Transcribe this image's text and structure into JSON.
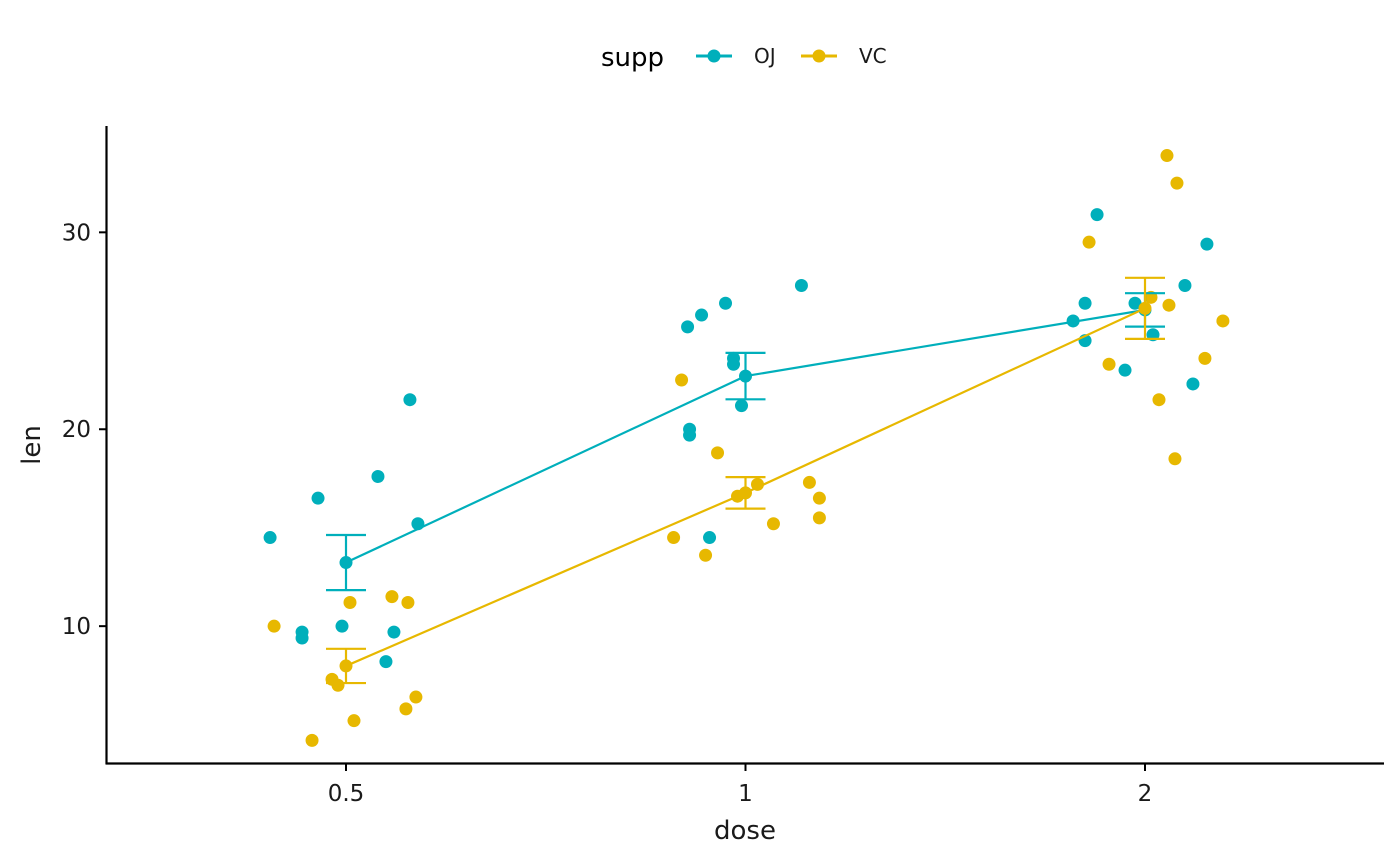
{
  "chart_data": {
    "type": "scatter",
    "title": "",
    "xlabel": "dose",
    "ylabel": "len",
    "x_categories": [
      "0.5",
      "1",
      "2"
    ],
    "y_ticks": [
      10,
      20,
      30
    ],
    "y_tick_labels": [
      "10",
      "20",
      "30"
    ],
    "ylim": [
      3.0,
      35.4
    ],
    "grid": false,
    "legend": {
      "title": "supp",
      "position": "top",
      "entries": [
        "OJ",
        "VC"
      ]
    },
    "colors": {
      "OJ": "#00AFBB",
      "VC": "#E7B800"
    },
    "series": [
      {
        "name": "OJ",
        "points": [
          {
            "dose": "0.5",
            "jitter": -0.19,
            "len": 14.5
          },
          {
            "dose": "0.5",
            "jitter": -0.07,
            "len": 16.5
          },
          {
            "dose": "0.5",
            "jitter": 0.08,
            "len": 17.6
          },
          {
            "dose": "0.5",
            "jitter": 0.16,
            "len": 21.5
          },
          {
            "dose": "0.5",
            "jitter": 0.18,
            "len": 15.2
          },
          {
            "dose": "0.5",
            "jitter": -0.11,
            "len": 9.7
          },
          {
            "dose": "0.5",
            "jitter": -0.11,
            "len": 9.4
          },
          {
            "dose": "0.5",
            "jitter": -0.01,
            "len": 10.0
          },
          {
            "dose": "0.5",
            "jitter": 0.12,
            "len": 9.7
          },
          {
            "dose": "0.5",
            "jitter": 0.1,
            "len": 8.2
          },
          {
            "dose": "1",
            "jitter": -0.145,
            "len": 25.2
          },
          {
            "dose": "1",
            "jitter": -0.11,
            "len": 25.8
          },
          {
            "dose": "1",
            "jitter": -0.05,
            "len": 26.4
          },
          {
            "dose": "1",
            "jitter": 0.14,
            "len": 27.3
          },
          {
            "dose": "1",
            "jitter": -0.03,
            "len": 23.6
          },
          {
            "dose": "1",
            "jitter": -0.03,
            "len": 23.3
          },
          {
            "dose": "1",
            "jitter": -0.01,
            "len": 21.2
          },
          {
            "dose": "1",
            "jitter": -0.14,
            "len": 20.0
          },
          {
            "dose": "1",
            "jitter": -0.14,
            "len": 19.7
          },
          {
            "dose": "1",
            "jitter": -0.09,
            "len": 14.5
          },
          {
            "dose": "2",
            "jitter": -0.12,
            "len": 30.9
          },
          {
            "dose": "2",
            "jitter": 0.155,
            "len": 29.4
          },
          {
            "dose": "2",
            "jitter": 0.1,
            "len": 27.3
          },
          {
            "dose": "2",
            "jitter": -0.15,
            "len": 26.4
          },
          {
            "dose": "2",
            "jitter": -0.025,
            "len": 26.4
          },
          {
            "dose": "2",
            "jitter": -0.18,
            "len": 25.5
          },
          {
            "dose": "2",
            "jitter": -0.15,
            "len": 24.5
          },
          {
            "dose": "2",
            "jitter": 0.02,
            "len": 24.8
          },
          {
            "dose": "2",
            "jitter": -0.05,
            "len": 23.0
          },
          {
            "dose": "2",
            "jitter": 0.12,
            "len": 22.3
          }
        ],
        "summary": [
          {
            "dose": "0.5",
            "mean": 13.23,
            "lower": 11.83,
            "upper": 14.63
          },
          {
            "dose": "1",
            "mean": 22.7,
            "lower": 21.52,
            "upper": 23.88
          },
          {
            "dose": "2",
            "mean": 26.06,
            "lower": 25.21,
            "upper": 26.91
          }
        ]
      },
      {
        "name": "VC",
        "points": [
          {
            "dose": "0.5",
            "jitter": -0.18,
            "len": 10.0
          },
          {
            "dose": "0.5",
            "jitter": 0.01,
            "len": 11.2
          },
          {
            "dose": "0.5",
            "jitter": 0.115,
            "len": 11.5
          },
          {
            "dose": "0.5",
            "jitter": 0.155,
            "len": 11.2
          },
          {
            "dose": "0.5",
            "jitter": -0.035,
            "len": 7.3
          },
          {
            "dose": "0.5",
            "jitter": -0.02,
            "len": 7.0
          },
          {
            "dose": "0.5",
            "jitter": 0.02,
            "len": 5.2
          },
          {
            "dose": "0.5",
            "jitter": 0.15,
            "len": 5.8
          },
          {
            "dose": "0.5",
            "jitter": 0.175,
            "len": 6.4
          },
          {
            "dose": "0.5",
            "jitter": -0.085,
            "len": 4.2
          },
          {
            "dose": "1",
            "jitter": -0.16,
            "len": 22.5
          },
          {
            "dose": "1",
            "jitter": -0.07,
            "len": 18.8
          },
          {
            "dose": "1",
            "jitter": 0.16,
            "len": 17.3
          },
          {
            "dose": "1",
            "jitter": 0.185,
            "len": 16.5
          },
          {
            "dose": "1",
            "jitter": 0.185,
            "len": 15.5
          },
          {
            "dose": "1",
            "jitter": 0.07,
            "len": 15.2
          },
          {
            "dose": "1",
            "jitter": -0.18,
            "len": 14.5
          },
          {
            "dose": "1",
            "jitter": -0.1,
            "len": 13.6
          },
          {
            "dose": "1",
            "jitter": -0.02,
            "len": 16.6
          },
          {
            "dose": "1",
            "jitter": 0.03,
            "len": 17.2
          },
          {
            "dose": "2",
            "jitter": 0.055,
            "len": 33.9
          },
          {
            "dose": "2",
            "jitter": 0.08,
            "len": 32.5
          },
          {
            "dose": "2",
            "jitter": -0.14,
            "len": 29.5
          },
          {
            "dose": "2",
            "jitter": 0.015,
            "len": 26.7
          },
          {
            "dose": "2",
            "jitter": 0.06,
            "len": 26.3
          },
          {
            "dose": "2",
            "jitter": 0.195,
            "len": 25.5
          },
          {
            "dose": "2",
            "jitter": 0.15,
            "len": 23.6
          },
          {
            "dose": "2",
            "jitter": -0.09,
            "len": 23.3
          },
          {
            "dose": "2",
            "jitter": 0.035,
            "len": 21.5
          },
          {
            "dose": "2",
            "jitter": 0.075,
            "len": 18.5
          }
        ],
        "summary": [
          {
            "dose": "0.5",
            "mean": 7.98,
            "lower": 7.11,
            "upper": 8.85
          },
          {
            "dose": "1",
            "mean": 16.77,
            "lower": 15.97,
            "upper": 17.57
          },
          {
            "dose": "2",
            "mean": 26.14,
            "lower": 24.59,
            "upper": 27.69
          }
        ]
      }
    ]
  }
}
